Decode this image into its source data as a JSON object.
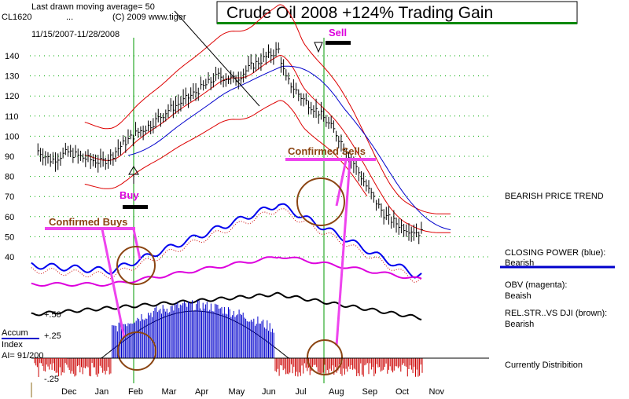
{
  "header": {
    "ticker": "CL1620",
    "dots": "...",
    "last_ma": "Last drawn moving average= 50",
    "copyright": "(C) 2009 www.tiger",
    "date_range": "11/15/2007-11/28/2008",
    "title": "Crude Oil 2008  +124% Trading Gain"
  },
  "annotations": {
    "sell": "Sell",
    "buy": "Buy",
    "confirmed_sells": "Confirmed Sells",
    "confirmed_buys": "Confirmed Buys"
  },
  "right_labels": {
    "trend": "BEARISH PRICE TREND",
    "closing_power": "CLOSING POWER (blue):",
    "closing_power_state": "Bearish",
    "obv": "OBV (magenta):",
    "obv_state": "Beaish",
    "relstr": "REL.STR..VS DJI (brown):",
    "relstr_state": "Bearish",
    "distribution": "Currently Distribition"
  },
  "accum": {
    "title_line1": "Accum",
    "title_line2": "Index",
    "ai_value": "AI= 91/200",
    "tick_top": "+.50",
    "tick_mid": "+.25",
    "tick_bottom": "-.25"
  },
  "colors": {
    "price_bars": "#000000",
    "ma_red": "#dd0000",
    "ma_blue": "#0000cc",
    "closing_power": "#0000ee",
    "obv": "#dd00dd",
    "relstr": "#000000",
    "accum_pos": "#0000cc",
    "accum_neg": "#cc0000",
    "signal_line": "#009900",
    "highlight": "#ee44ee",
    "annotation_brown": "#8b4513",
    "title_underline": "#008800"
  },
  "chart_data": {
    "type": "line",
    "x_axis": {
      "ticks": [
        "Dec",
        "Jan",
        "Feb",
        "Mar",
        "Apr",
        "May",
        "Jun",
        "Jul",
        "Aug",
        "Sep",
        "Oct",
        "Nov"
      ]
    },
    "y_axis": {
      "ticks": [
        140,
        130,
        120,
        110,
        100,
        90,
        80,
        70,
        60,
        50,
        40
      ],
      "ylim": [
        35,
        148
      ]
    },
    "signals": [
      {
        "label": "Buy",
        "month": "Feb",
        "date_index": 2.3
      },
      {
        "label": "Sell",
        "month": "Jul",
        "date_index": 7.4
      }
    ],
    "price_close": {
      "x": [
        0,
        0.5,
        1,
        1.5,
        2,
        2.3,
        2.5,
        3,
        3.5,
        4,
        4.5,
        5,
        5.5,
        6,
        6.5,
        7,
        7.3,
        7.5,
        8,
        8.5,
        9,
        9.5,
        10,
        10.5,
        11,
        11.5
      ],
      "y": [
        94,
        88,
        92,
        89,
        87,
        90,
        94,
        101,
        106,
        113,
        118,
        124,
        130,
        128,
        135,
        140,
        143,
        129,
        119,
        112,
        102,
        88,
        73,
        60,
        55,
        52
      ]
    },
    "series": [
      {
        "name": "CLOSING POWER (blue)",
        "state": "Bearish"
      },
      {
        "name": "OBV (magenta)",
        "state": "Beaish"
      },
      {
        "name": "REL.STR..VS DJI (brown)",
        "state": "Bearish"
      }
    ]
  }
}
